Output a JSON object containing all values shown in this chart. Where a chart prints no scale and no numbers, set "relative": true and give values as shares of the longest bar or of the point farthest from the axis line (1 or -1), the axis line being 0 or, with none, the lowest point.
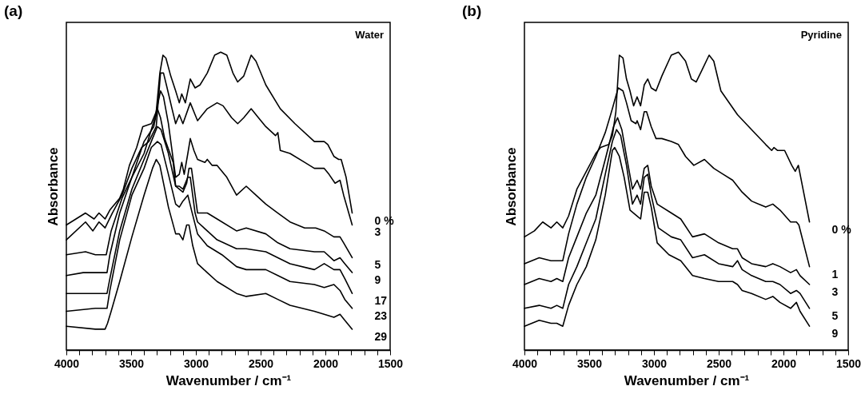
{
  "chart_data": [
    {
      "type": "line",
      "title": "(a)",
      "xlabel": "Wavenumber / cm⁻¹",
      "ylabel": "Absorbance",
      "relative": true,
      "legend": false,
      "xlim": [
        4000,
        1500
      ],
      "xticks": [
        4000,
        {
          "value": 3900,
          "label": null
        },
        {
          "value": 3800,
          "label": null
        },
        {
          "value": 3700,
          "label": null
        },
        {
          "value": 3600,
          "label": null
        },
        3500,
        {
          "value": 3400,
          "label": null
        },
        {
          "value": 3300,
          "label": null
        },
        {
          "value": 3200,
          "label": null
        },
        {
          "value": 3100,
          "label": null
        },
        3000,
        {
          "value": 2900,
          "label": null
        },
        {
          "value": 2800,
          "label": null
        },
        {
          "value": 2700,
          "label": null
        },
        {
          "value": 2600,
          "label": null
        },
        2500,
        {
          "value": 2400,
          "label": null
        },
        {
          "value": 2300,
          "label": null
        },
        {
          "value": 2200,
          "label": null
        },
        {
          "value": 2100,
          "label": null
        },
        2000,
        {
          "value": 1900,
          "label": null
        },
        {
          "value": 1800,
          "label": null
        },
        {
          "value": 1700,
          "label": null
        },
        {
          "value": 1600,
          "label": null
        },
        1500
      ],
      "annotations": [
        "Water"
      ],
      "series": [
        {
          "name": "0 %",
          "color": "#000000",
          "x": [
            4000,
            3852,
            3786,
            3748,
            3701,
            3664,
            3588,
            3560,
            3513,
            3457,
            3410,
            3344,
            3306,
            3278,
            3254,
            3231,
            3194,
            3156,
            3128,
            3109,
            3081,
            3043,
            3006,
            2968,
            2912,
            2855,
            2808,
            2761,
            2714,
            2677,
            2630,
            2573,
            2536,
            2460,
            2348,
            2235,
            2085,
            2009,
            1981,
            1934,
            1897,
            1878,
            1840,
            1793
          ],
          "values": [
            0.42,
            0.46,
            0.44,
            0.46,
            0.44,
            0.47,
            0.51,
            0.54,
            0.62,
            0.68,
            0.75,
            0.76,
            0.8,
            0.93,
            0.99,
            0.98,
            0.92,
            0.87,
            0.83,
            0.86,
            0.83,
            0.91,
            0.88,
            0.89,
            0.93,
            0.99,
            1.0,
            0.99,
            0.93,
            0.9,
            0.92,
            0.99,
            0.97,
            0.89,
            0.81,
            0.76,
            0.7,
            0.7,
            0.69,
            0.65,
            0.64,
            0.64,
            0.58,
            0.46
          ]
        },
        {
          "name": "3",
          "color": "#000000",
          "x": [
            4000,
            3852,
            3795,
            3748,
            3701,
            3645,
            3570,
            3494,
            3419,
            3363,
            3306,
            3273,
            3250,
            3222,
            3184,
            3156,
            3128,
            3100,
            3043,
            3006,
            2987,
            2912,
            2836,
            2790,
            2724,
            2677,
            2630,
            2573,
            2517,
            2460,
            2385,
            2367,
            2348,
            2273,
            2160,
            2085,
            2009,
            1972,
            1925,
            1887,
            1859,
            1793
          ],
          "values": [
            0.37,
            0.43,
            0.4,
            0.43,
            0.41,
            0.46,
            0.52,
            0.61,
            0.68,
            0.7,
            0.75,
            0.93,
            0.93,
            0.88,
            0.81,
            0.76,
            0.79,
            0.76,
            0.83,
            0.79,
            0.77,
            0.81,
            0.83,
            0.82,
            0.78,
            0.76,
            0.78,
            0.81,
            0.78,
            0.75,
            0.72,
            0.73,
            0.67,
            0.66,
            0.63,
            0.61,
            0.61,
            0.59,
            0.56,
            0.57,
            0.52,
            0.42
          ]
        },
        {
          "name": "5",
          "color": "#000000",
          "x": [
            4000,
            3852,
            3776,
            3739,
            3692,
            3654,
            3570,
            3494,
            3400,
            3316,
            3273,
            3250,
            3212,
            3175,
            3156,
            3128,
            3109,
            3090,
            3062,
            3043,
            3015,
            2987,
            2930,
            2912,
            2874,
            2836,
            2761,
            2686,
            2611,
            2536,
            2460,
            2367,
            2273,
            2160,
            2075,
            2009,
            1934,
            1887,
            1859,
            1793
          ],
          "values": [
            0.32,
            0.33,
            0.32,
            0.32,
            0.32,
            0.4,
            0.51,
            0.58,
            0.66,
            0.78,
            0.87,
            0.85,
            0.76,
            0.64,
            0.58,
            0.59,
            0.63,
            0.59,
            0.66,
            0.71,
            0.67,
            0.64,
            0.63,
            0.64,
            0.62,
            0.62,
            0.58,
            0.52,
            0.55,
            0.52,
            0.49,
            0.46,
            0.43,
            0.41,
            0.41,
            0.4,
            0.38,
            0.38,
            0.36,
            0.31
          ]
        },
        {
          "name": "9",
          "color": "#000000",
          "x": [
            4000,
            3870,
            3776,
            3686,
            3664,
            3588,
            3494,
            3400,
            3325,
            3297,
            3273,
            3241,
            3175,
            3156,
            3128,
            3100,
            3071,
            3053,
            3034,
            2987,
            2912,
            2836,
            2686,
            2611,
            2460,
            2367,
            2273,
            2085,
            2009,
            1934,
            1887,
            1850,
            1793
          ],
          "values": [
            0.25,
            0.26,
            0.26,
            0.26,
            0.32,
            0.46,
            0.58,
            0.7,
            0.75,
            0.81,
            0.78,
            0.71,
            0.63,
            0.55,
            0.54,
            0.53,
            0.56,
            0.61,
            0.61,
            0.46,
            0.46,
            0.44,
            0.4,
            0.41,
            0.39,
            0.36,
            0.34,
            0.33,
            0.33,
            0.3,
            0.31,
            0.29,
            0.26
          ]
        },
        {
          "name": "17",
          "color": "#000000",
          "x": [
            4000,
            3776,
            3686,
            3664,
            3588,
            3494,
            3400,
            3335,
            3297,
            3269,
            3212,
            3156,
            3128,
            3100,
            3062,
            3043,
            3006,
            2987,
            2912,
            2836,
            2686,
            2611,
            2460,
            2367,
            2273,
            2085,
            2009,
            1934,
            1887,
            1850,
            1793
          ],
          "values": [
            0.19,
            0.19,
            0.19,
            0.24,
            0.4,
            0.54,
            0.64,
            0.71,
            0.75,
            0.74,
            0.66,
            0.55,
            0.55,
            0.54,
            0.58,
            0.58,
            0.46,
            0.43,
            0.4,
            0.37,
            0.34,
            0.34,
            0.33,
            0.31,
            0.29,
            0.27,
            0.29,
            0.27,
            0.27,
            0.24,
            0.19
          ]
        },
        {
          "name": "23",
          "color": "#000000",
          "x": [
            4000,
            3776,
            3686,
            3664,
            3588,
            3494,
            3400,
            3344,
            3297,
            3269,
            3212,
            3156,
            3128,
            3100,
            3062,
            3034,
            2987,
            2912,
            2799,
            2686,
            2611,
            2460,
            2367,
            2273,
            2085,
            2009,
            1934,
            1887,
            1850,
            1793
          ],
          "values": [
            0.13,
            0.14,
            0.14,
            0.2,
            0.37,
            0.52,
            0.61,
            0.68,
            0.7,
            0.69,
            0.59,
            0.49,
            0.48,
            0.5,
            0.52,
            0.47,
            0.39,
            0.35,
            0.32,
            0.28,
            0.27,
            0.27,
            0.25,
            0.23,
            0.22,
            0.21,
            0.22,
            0.2,
            0.17,
            0.14
          ]
        },
        {
          "name": "29",
          "color": "#000000",
          "x": [
            4000,
            3776,
            3701,
            3682,
            3654,
            3588,
            3494,
            3400,
            3335,
            3306,
            3278,
            3212,
            3156,
            3128,
            3100,
            3071,
            3053,
            3024,
            2987,
            2912,
            2836,
            2686,
            2611,
            2460,
            2367,
            2273,
            2085,
            2009,
            1934,
            1887,
            1850,
            1793
          ],
          "values": [
            0.08,
            0.07,
            0.07,
            0.09,
            0.13,
            0.23,
            0.38,
            0.52,
            0.61,
            0.64,
            0.62,
            0.48,
            0.39,
            0.39,
            0.37,
            0.42,
            0.42,
            0.35,
            0.29,
            0.26,
            0.23,
            0.19,
            0.18,
            0.19,
            0.17,
            0.15,
            0.13,
            0.12,
            0.11,
            0.12,
            0.1,
            0.07
          ]
        }
      ]
    },
    {
      "type": "line",
      "title": "(b)",
      "xlabel": "Wavenumber / cm⁻¹",
      "ylabel": "Absorbance",
      "relative": true,
      "legend": false,
      "xlim": [
        4000,
        1500
      ],
      "xticks": [
        4000,
        {
          "value": 3900,
          "label": null
        },
        {
          "value": 3800,
          "label": null
        },
        {
          "value": 3700,
          "label": null
        },
        {
          "value": 3600,
          "label": null
        },
        3500,
        {
          "value": 3400,
          "label": null
        },
        {
          "value": 3300,
          "label": null
        },
        {
          "value": 3200,
          "label": null
        },
        {
          "value": 3100,
          "label": null
        },
        3000,
        {
          "value": 2900,
          "label": null
        },
        {
          "value": 2800,
          "label": null
        },
        {
          "value": 2700,
          "label": null
        },
        {
          "value": 2600,
          "label": null
        },
        2500,
        {
          "value": 2400,
          "label": null
        },
        {
          "value": 2300,
          "label": null
        },
        {
          "value": 2200,
          "label": null
        },
        {
          "value": 2100,
          "label": null
        },
        2000,
        {
          "value": 1900,
          "label": null
        },
        {
          "value": 1800,
          "label": null
        },
        {
          "value": 1700,
          "label": null
        },
        {
          "value": 1600,
          "label": null
        },
        1500
      ],
      "annotations": [
        "Pyridine"
      ],
      "series": [
        {
          "name": "0 %",
          "color": "#000000",
          "x": [
            4000,
            3923,
            3859,
            3795,
            3750,
            3704,
            3659,
            3595,
            3522,
            3449,
            3412,
            3349,
            3321,
            3294,
            3267,
            3239,
            3212,
            3185,
            3157,
            3130,
            3103,
            3075,
            3048,
            3021,
            2984,
            2939,
            2866,
            2811,
            2756,
            2711,
            2674,
            2629,
            2574,
            2538,
            2483,
            2355,
            2246,
            2137,
            2091,
            2073,
            2045,
            1991,
            1936,
            1909,
            1885,
            1799
          ],
          "values": [
            0.38,
            0.4,
            0.43,
            0.41,
            0.43,
            0.41,
            0.45,
            0.54,
            0.6,
            0.66,
            0.68,
            0.69,
            0.72,
            0.8,
            0.99,
            0.98,
            0.91,
            0.87,
            0.82,
            0.85,
            0.82,
            0.89,
            0.91,
            0.88,
            0.87,
            0.92,
            0.99,
            1.0,
            0.97,
            0.91,
            0.9,
            0.94,
            0.99,
            0.97,
            0.87,
            0.79,
            0.74,
            0.69,
            0.67,
            0.68,
            0.67,
            0.67,
            0.62,
            0.6,
            0.62,
            0.43
          ]
        },
        {
          "name": "1",
          "color": "#000000",
          "x": [
            4000,
            3886,
            3795,
            3750,
            3704,
            3659,
            3595,
            3522,
            3449,
            3376,
            3321,
            3276,
            3239,
            3212,
            3176,
            3139,
            3130,
            3103,
            3075,
            3057,
            3021,
            2984,
            2939,
            2866,
            2811,
            2756,
            2692,
            2610,
            2538,
            2465,
            2392,
            2319,
            2246,
            2137,
            2082,
            2027,
            1945,
            1900,
            1881,
            1799
          ],
          "values": [
            0.29,
            0.31,
            0.3,
            0.3,
            0.3,
            0.39,
            0.49,
            0.58,
            0.65,
            0.73,
            0.81,
            0.88,
            0.87,
            0.83,
            0.77,
            0.76,
            0.77,
            0.74,
            0.8,
            0.8,
            0.75,
            0.71,
            0.71,
            0.7,
            0.69,
            0.65,
            0.62,
            0.64,
            0.61,
            0.59,
            0.57,
            0.53,
            0.5,
            0.48,
            0.49,
            0.47,
            0.43,
            0.43,
            0.42,
            0.28
          ]
        },
        {
          "name": "3",
          "color": "#000000",
          "x": [
            4000,
            3886,
            3795,
            3750,
            3704,
            3659,
            3595,
            3522,
            3449,
            3376,
            3312,
            3281,
            3248,
            3212,
            3166,
            3130,
            3103,
            3075,
            3048,
            3021,
            2975,
            2866,
            2793,
            2702,
            2610,
            2501,
            2392,
            2355,
            2319,
            2246,
            2137,
            2082,
            2027,
            1945,
            1900,
            1872,
            1799
          ],
          "values": [
            0.22,
            0.24,
            0.23,
            0.24,
            0.23,
            0.31,
            0.38,
            0.46,
            0.52,
            0.64,
            0.75,
            0.78,
            0.74,
            0.65,
            0.54,
            0.57,
            0.54,
            0.61,
            0.62,
            0.55,
            0.49,
            0.46,
            0.44,
            0.38,
            0.39,
            0.36,
            0.34,
            0.34,
            0.31,
            0.29,
            0.28,
            0.29,
            0.28,
            0.26,
            0.27,
            0.25,
            0.22
          ]
        },
        {
          "name": "5",
          "color": "#000000",
          "x": [
            4000,
            3886,
            3795,
            3750,
            3704,
            3659,
            3595,
            3522,
            3449,
            3376,
            3321,
            3289,
            3257,
            3212,
            3166,
            3130,
            3103,
            3075,
            3048,
            3021,
            2966,
            2866,
            2793,
            2702,
            2610,
            2501,
            2392,
            2355,
            2319,
            2246,
            2137,
            2082,
            2027,
            1945,
            1900,
            1872,
            1799
          ],
          "values": [
            0.14,
            0.15,
            0.14,
            0.15,
            0.14,
            0.22,
            0.28,
            0.36,
            0.44,
            0.59,
            0.7,
            0.74,
            0.72,
            0.62,
            0.49,
            0.52,
            0.49,
            0.58,
            0.59,
            0.52,
            0.41,
            0.38,
            0.37,
            0.31,
            0.32,
            0.29,
            0.28,
            0.3,
            0.27,
            0.25,
            0.23,
            0.23,
            0.22,
            0.19,
            0.2,
            0.19,
            0.14
          ]
        },
        {
          "name": "9",
          "color": "#000000",
          "x": [
            4000,
            3886,
            3795,
            3750,
            3704,
            3659,
            3595,
            3522,
            3449,
            3376,
            3321,
            3303,
            3267,
            3230,
            3185,
            3130,
            3103,
            3075,
            3048,
            3021,
            2975,
            2884,
            2793,
            2702,
            2610,
            2501,
            2392,
            2355,
            2319,
            2246,
            2137,
            2082,
            2027,
            1945,
            1900,
            1872,
            1799
          ],
          "values": [
            0.08,
            0.1,
            0.09,
            0.09,
            0.08,
            0.15,
            0.22,
            0.28,
            0.37,
            0.52,
            0.67,
            0.68,
            0.65,
            0.58,
            0.47,
            0.45,
            0.44,
            0.53,
            0.53,
            0.48,
            0.36,
            0.32,
            0.3,
            0.25,
            0.24,
            0.23,
            0.23,
            0.22,
            0.2,
            0.19,
            0.17,
            0.18,
            0.16,
            0.14,
            0.16,
            0.13,
            0.08
          ]
        }
      ]
    }
  ]
}
